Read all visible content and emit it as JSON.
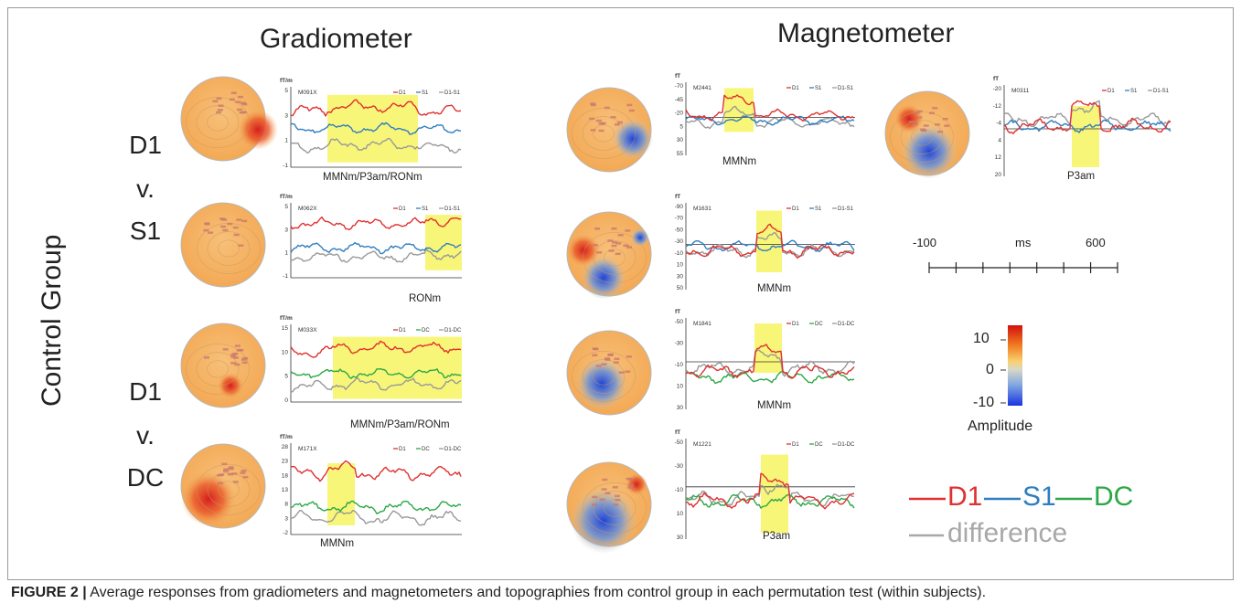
{
  "headings": {
    "gradiometer": "Gradiometer",
    "magnetometer": "Magnetometer"
  },
  "group_label": "Control Group",
  "row_labels": {
    "top": [
      "D1",
      "v.",
      "S1"
    ],
    "bottom": [
      "D1",
      "v.",
      "DC"
    ]
  },
  "colors": {
    "D1": "#e03030",
    "S1": "#2f7ec0",
    "DC": "#2ba845",
    "diff": "#999999",
    "highlight": "#f7f560"
  },
  "panels": [
    {
      "id": "M091X",
      "unit": "fT/m",
      "legend": [
        "D1",
        "S1",
        "D1-S1"
      ],
      "yticks": [
        "5",
        "3",
        "1",
        "-1"
      ],
      "window_label": "MMNm/P3am/RONm",
      "comp": "S1"
    },
    {
      "id": "M062X",
      "unit": "fT/m",
      "legend": [
        "D1",
        "S1",
        "D1-S1"
      ],
      "yticks": [
        "5",
        "3",
        "1",
        "-1"
      ],
      "window_label": "RONm",
      "comp": "S1"
    },
    {
      "id": "M033X",
      "unit": "fT/m",
      "legend": [
        "D1",
        "DC",
        "D1-DC"
      ],
      "yticks": [
        "15",
        "10",
        "5",
        "0"
      ],
      "window_label": "MMNm/P3am/RONm",
      "comp": "DC"
    },
    {
      "id": "M171X",
      "unit": "fT/m",
      "legend": [
        "D1",
        "DC",
        "D1-DC"
      ],
      "yticks": [
        "28",
        "23",
        "18",
        "13",
        "8",
        "3",
        "-2"
      ],
      "window_label": "MMNm",
      "comp": "DC"
    },
    {
      "id": "M2441",
      "unit": "fT",
      "legend": [
        "D1",
        "S1",
        "D1-S1"
      ],
      "yticks": [
        "-70",
        "-45",
        "-20",
        "5",
        "30",
        "55"
      ],
      "window_label": "MMNm",
      "comp": "S1"
    },
    {
      "id": "M1631",
      "unit": "fT",
      "legend": [
        "D1",
        "S1",
        "D1-S1"
      ],
      "yticks": [
        "-90",
        "-70",
        "-50",
        "-30",
        "-10",
        "10",
        "30",
        "50"
      ],
      "window_label": "MMNm",
      "comp": "S1"
    },
    {
      "id": "M1841",
      "unit": "fT",
      "legend": [
        "D1",
        "DC",
        "D1-DC"
      ],
      "yticks": [
        "-50",
        "-30",
        "-10",
        "10",
        "30"
      ],
      "window_label": "MMNm",
      "comp": "DC"
    },
    {
      "id": "M1221",
      "unit": "fT",
      "legend": [
        "D1",
        "DC",
        "D1-DC"
      ],
      "yticks": [
        "-50",
        "-30",
        "-10",
        "10",
        "30"
      ],
      "window_label": "P3am",
      "comp": "DC"
    },
    {
      "id": "M0311",
      "unit": "fT",
      "legend": [
        "D1",
        "S1",
        "D1-S1"
      ],
      "yticks": [
        "-20",
        "-12",
        "-4",
        "4",
        "12",
        "20"
      ],
      "window_label": "P3am",
      "comp": "S1"
    }
  ],
  "time_scale": {
    "start": "-100",
    "unit": "ms",
    "end": "600"
  },
  "colorbar": {
    "ticks": [
      "10",
      "0",
      "-10"
    ],
    "label": "Amplitude"
  },
  "legend": {
    "D1": "D1",
    "S1": "S1",
    "DC": "DC",
    "difference": "difference"
  },
  "caption": {
    "label": "FIGURE 2 |",
    "text": " Average responses from gradiometers and magnetometers and topographies from control group in each permutation test (within subjects)."
  }
}
